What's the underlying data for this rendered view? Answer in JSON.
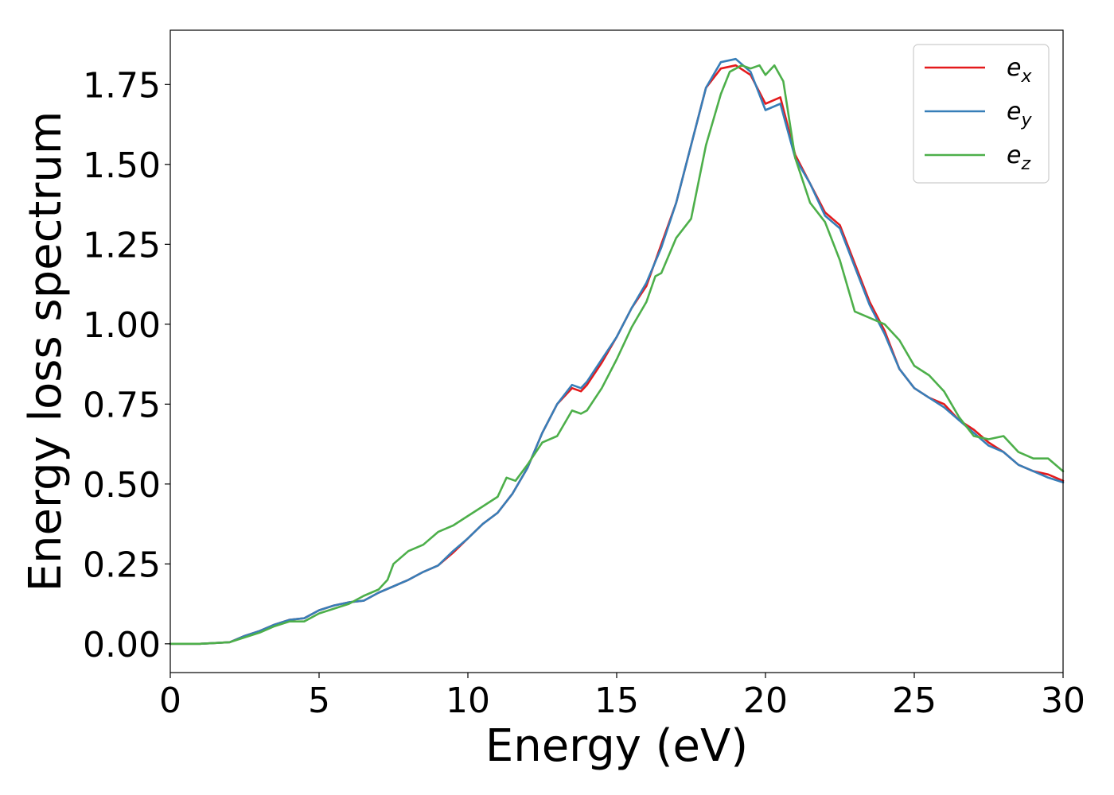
{
  "chart_data": {
    "type": "line",
    "xlabel": "Energy (eV)",
    "ylabel": "Energy loss spectrum",
    "xlim": [
      0,
      30
    ],
    "ylim": [
      -0.09,
      1.92
    ],
    "xticks": [
      0,
      5,
      10,
      15,
      20,
      25,
      30
    ],
    "xtick_labels": [
      "0",
      "5",
      "10",
      "15",
      "20",
      "25",
      "30"
    ],
    "yticks": [
      0.0,
      0.25,
      0.5,
      0.75,
      1.0,
      1.25,
      1.5,
      1.75
    ],
    "ytick_labels": [
      "0.00",
      "0.25",
      "0.50",
      "0.75",
      "1.00",
      "1.25",
      "1.50",
      "1.75"
    ],
    "grid": false,
    "legend_position": "top-right",
    "series": [
      {
        "name_base": "e",
        "name_sub": "x",
        "color": "#e41a1c",
        "points": [
          [
            0,
            0
          ],
          [
            1,
            0
          ],
          [
            2,
            0.005
          ],
          [
            2.5,
            0.025
          ],
          [
            3,
            0.04
          ],
          [
            3.5,
            0.06
          ],
          [
            4,
            0.075
          ],
          [
            4.5,
            0.08
          ],
          [
            5,
            0.105
          ],
          [
            5.5,
            0.12
          ],
          [
            6,
            0.13
          ],
          [
            6.5,
            0.135
          ],
          [
            7,
            0.16
          ],
          [
            7.5,
            0.18
          ],
          [
            8,
            0.2
          ],
          [
            8.5,
            0.225
          ],
          [
            9,
            0.245
          ],
          [
            9.5,
            0.285
          ],
          [
            10,
            0.33
          ],
          [
            10.5,
            0.375
          ],
          [
            11,
            0.41
          ],
          [
            11.5,
            0.47
          ],
          [
            12,
            0.55
          ],
          [
            12.5,
            0.66
          ],
          [
            13,
            0.75
          ],
          [
            13.5,
            0.8
          ],
          [
            13.8,
            0.79
          ],
          [
            14,
            0.81
          ],
          [
            14.5,
            0.88
          ],
          [
            15,
            0.96
          ],
          [
            15.5,
            1.05
          ],
          [
            16,
            1.12
          ],
          [
            16.5,
            1.25
          ],
          [
            17,
            1.38
          ],
          [
            17.5,
            1.56
          ],
          [
            18,
            1.74
          ],
          [
            18.5,
            1.8
          ],
          [
            19,
            1.81
          ],
          [
            19.5,
            1.78
          ],
          [
            20,
            1.69
          ],
          [
            20.5,
            1.71
          ],
          [
            21,
            1.53
          ],
          [
            21.5,
            1.44
          ],
          [
            22,
            1.35
          ],
          [
            22.5,
            1.31
          ],
          [
            23,
            1.19
          ],
          [
            23.5,
            1.07
          ],
          [
            24,
            0.98
          ],
          [
            24.5,
            0.86
          ],
          [
            25,
            0.8
          ],
          [
            25.5,
            0.77
          ],
          [
            26,
            0.75
          ],
          [
            26.5,
            0.7
          ],
          [
            27,
            0.67
          ],
          [
            27.5,
            0.63
          ],
          [
            28,
            0.6
          ],
          [
            28.5,
            0.56
          ],
          [
            29,
            0.54
          ],
          [
            29.5,
            0.53
          ],
          [
            30,
            0.51
          ]
        ]
      },
      {
        "name_base": "e",
        "name_sub": "y",
        "color": "#377eb8",
        "points": [
          [
            0,
            0
          ],
          [
            1,
            0
          ],
          [
            2,
            0.005
          ],
          [
            2.5,
            0.025
          ],
          [
            3,
            0.04
          ],
          [
            3.5,
            0.06
          ],
          [
            4,
            0.075
          ],
          [
            4.5,
            0.08
          ],
          [
            5,
            0.105
          ],
          [
            5.5,
            0.12
          ],
          [
            6,
            0.13
          ],
          [
            6.5,
            0.135
          ],
          [
            7,
            0.16
          ],
          [
            7.5,
            0.18
          ],
          [
            8,
            0.2
          ],
          [
            8.5,
            0.225
          ],
          [
            9,
            0.245
          ],
          [
            9.5,
            0.29
          ],
          [
            10,
            0.33
          ],
          [
            10.5,
            0.375
          ],
          [
            11,
            0.41
          ],
          [
            11.5,
            0.47
          ],
          [
            12,
            0.55
          ],
          [
            12.5,
            0.66
          ],
          [
            13,
            0.75
          ],
          [
            13.5,
            0.81
          ],
          [
            13.8,
            0.8
          ],
          [
            14,
            0.82
          ],
          [
            14.5,
            0.89
          ],
          [
            15,
            0.96
          ],
          [
            15.5,
            1.05
          ],
          [
            16,
            1.13
          ],
          [
            16.5,
            1.24
          ],
          [
            17,
            1.38
          ],
          [
            17.5,
            1.56
          ],
          [
            18,
            1.74
          ],
          [
            18.5,
            1.82
          ],
          [
            19,
            1.83
          ],
          [
            19.5,
            1.79
          ],
          [
            20,
            1.67
          ],
          [
            20.5,
            1.69
          ],
          [
            21,
            1.52
          ],
          [
            21.5,
            1.44
          ],
          [
            22,
            1.34
          ],
          [
            22.5,
            1.3
          ],
          [
            23,
            1.18
          ],
          [
            23.5,
            1.06
          ],
          [
            24,
            0.97
          ],
          [
            24.5,
            0.86
          ],
          [
            25,
            0.8
          ],
          [
            25.5,
            0.77
          ],
          [
            26,
            0.74
          ],
          [
            26.5,
            0.7
          ],
          [
            27,
            0.66
          ],
          [
            27.5,
            0.62
          ],
          [
            28,
            0.6
          ],
          [
            28.5,
            0.56
          ],
          [
            29,
            0.54
          ],
          [
            29.5,
            0.52
          ],
          [
            30,
            0.505
          ]
        ]
      },
      {
        "name_base": "e",
        "name_sub": "z",
        "color": "#4daf4a",
        "points": [
          [
            0,
            0
          ],
          [
            1,
            0
          ],
          [
            2,
            0.005
          ],
          [
            2.5,
            0.02
          ],
          [
            3,
            0.035
          ],
          [
            3.5,
            0.055
          ],
          [
            4,
            0.07
          ],
          [
            4.5,
            0.07
          ],
          [
            5,
            0.095
          ],
          [
            5.5,
            0.11
          ],
          [
            6,
            0.125
          ],
          [
            6.5,
            0.15
          ],
          [
            7,
            0.17
          ],
          [
            7.3,
            0.2
          ],
          [
            7.5,
            0.25
          ],
          [
            8,
            0.29
          ],
          [
            8.5,
            0.31
          ],
          [
            9,
            0.35
          ],
          [
            9.5,
            0.37
          ],
          [
            10,
            0.4
          ],
          [
            10.5,
            0.43
          ],
          [
            11,
            0.46
          ],
          [
            11.3,
            0.52
          ],
          [
            11.6,
            0.51
          ],
          [
            12,
            0.56
          ],
          [
            12.5,
            0.63
          ],
          [
            13,
            0.65
          ],
          [
            13.5,
            0.73
          ],
          [
            13.8,
            0.72
          ],
          [
            14,
            0.73
          ],
          [
            14.5,
            0.8
          ],
          [
            15,
            0.89
          ],
          [
            15.5,
            0.99
          ],
          [
            16,
            1.07
          ],
          [
            16.3,
            1.15
          ],
          [
            16.5,
            1.16
          ],
          [
            17,
            1.27
          ],
          [
            17.5,
            1.33
          ],
          [
            18,
            1.56
          ],
          [
            18.5,
            1.72
          ],
          [
            18.8,
            1.79
          ],
          [
            19.2,
            1.81
          ],
          [
            19.5,
            1.8
          ],
          [
            19.8,
            1.81
          ],
          [
            20,
            1.78
          ],
          [
            20.3,
            1.81
          ],
          [
            20.6,
            1.76
          ],
          [
            21,
            1.52
          ],
          [
            21.5,
            1.38
          ],
          [
            22,
            1.32
          ],
          [
            22.5,
            1.2
          ],
          [
            23,
            1.04
          ],
          [
            23.5,
            1.02
          ],
          [
            24,
            1.0
          ],
          [
            24.5,
            0.95
          ],
          [
            25,
            0.87
          ],
          [
            25.5,
            0.84
          ],
          [
            26,
            0.79
          ],
          [
            26.5,
            0.71
          ],
          [
            27,
            0.65
          ],
          [
            27.5,
            0.64
          ],
          [
            28,
            0.65
          ],
          [
            28.5,
            0.6
          ],
          [
            29,
            0.58
          ],
          [
            29.5,
            0.58
          ],
          [
            30,
            0.54
          ]
        ]
      }
    ]
  }
}
